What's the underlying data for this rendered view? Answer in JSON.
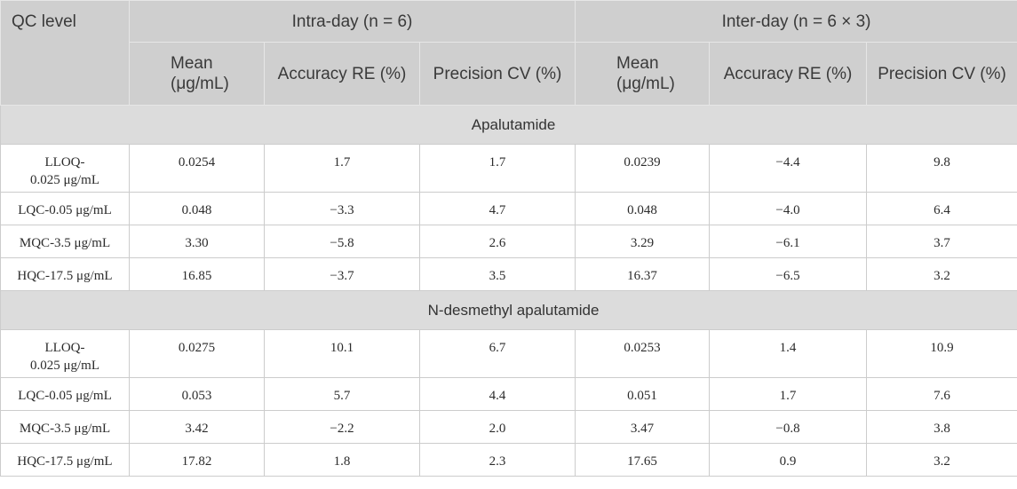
{
  "header": {
    "qc_level": "QC level",
    "intra_day": "Intra-day (n = 6)",
    "inter_day": "Inter-day (n = 6 × 3)",
    "mean": "Mean\n(μg/mL)",
    "mean_line1": "Mean",
    "mean_line2": "(μg/mL)",
    "accuracy": "Accuracy RE (%)",
    "precision": "Precision CV (%)"
  },
  "sections": [
    {
      "name": "Apalutamide",
      "rows": [
        {
          "label1": "LLOQ-",
          "label2": "0.025 μg/mL",
          "intra_mean": "0.0254",
          "intra_re": "1.7",
          "intra_cv": "1.7",
          "inter_mean": "0.0239",
          "inter_re": "−4.4",
          "inter_cv": "9.8"
        },
        {
          "label1": "LQC-0.05 μg/mL",
          "label2": "",
          "intra_mean": "0.048",
          "intra_re": "−3.3",
          "intra_cv": "4.7",
          "inter_mean": "0.048",
          "inter_re": "−4.0",
          "inter_cv": "6.4"
        },
        {
          "label1": "MQC-3.5 μg/mL",
          "label2": "",
          "intra_mean": "3.30",
          "intra_re": "−5.8",
          "intra_cv": "2.6",
          "inter_mean": "3.29",
          "inter_re": "−6.1",
          "inter_cv": "3.7"
        },
        {
          "label1": "HQC-17.5 μg/mL",
          "label2": "",
          "intra_mean": "16.85",
          "intra_re": "−3.7",
          "intra_cv": "3.5",
          "inter_mean": "16.37",
          "inter_re": "−6.5",
          "inter_cv": "3.2"
        }
      ]
    },
    {
      "name": "N-desmethyl apalutamide",
      "rows": [
        {
          "label1": "LLOQ-",
          "label2": "0.025 μg/mL",
          "intra_mean": "0.0275",
          "intra_re": "10.1",
          "intra_cv": "6.7",
          "inter_mean": "0.0253",
          "inter_re": "1.4",
          "inter_cv": "10.9"
        },
        {
          "label1": "LQC-0.05 μg/mL",
          "label2": "",
          "intra_mean": "0.053",
          "intra_re": "5.7",
          "intra_cv": "4.4",
          "inter_mean": "0.051",
          "inter_re": "1.7",
          "inter_cv": "7.6"
        },
        {
          "label1": "MQC-3.5 μg/mL",
          "label2": "",
          "intra_mean": "3.42",
          "intra_re": "−2.2",
          "intra_cv": "2.0",
          "inter_mean": "3.47",
          "inter_re": "−0.8",
          "inter_cv": "3.8"
        },
        {
          "label1": "HQC-17.5 μg/mL",
          "label2": "",
          "intra_mean": "17.82",
          "intra_re": "1.8",
          "intra_cv": "2.3",
          "inter_mean": "17.65",
          "inter_re": "0.9",
          "inter_cv": "3.2"
        }
      ]
    }
  ]
}
